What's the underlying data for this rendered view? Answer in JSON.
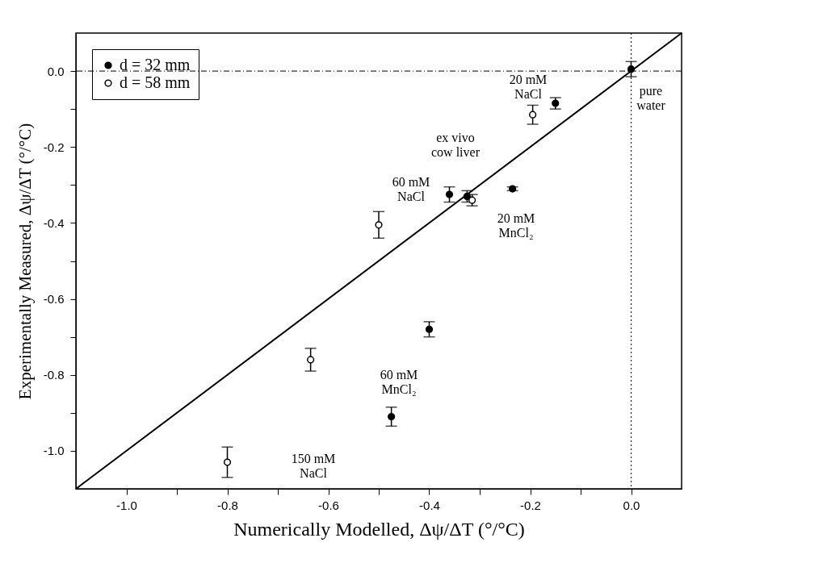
{
  "chart_data": {
    "type": "scatter",
    "xlabel": "Numerically Modelled, Δψ/ΔT  (°/°C)",
    "ylabel": "Experimentally Measured, Δψ/ΔT  (°/°C)",
    "xlim": [
      -1.1,
      0.1
    ],
    "ylim": [
      -1.1,
      0.1
    ],
    "xticks": [
      {
        "value": -1.0,
        "label": "-1.0"
      },
      {
        "value": -0.9,
        "label": null
      },
      {
        "value": -0.8,
        "label": "-0.8"
      },
      {
        "value": -0.7,
        "label": null
      },
      {
        "value": -0.6,
        "label": "-0.6"
      },
      {
        "value": -0.5,
        "label": null
      },
      {
        "value": -0.4,
        "label": "-0.4"
      },
      {
        "value": -0.3,
        "label": null
      },
      {
        "value": -0.2,
        "label": "-0.2"
      },
      {
        "value": -0.1,
        "label": null
      },
      {
        "value": 0,
        "label": "0.0"
      }
    ],
    "yticks": [
      {
        "value": -1.0,
        "label": "-1.0"
      },
      {
        "value": -0.9,
        "label": null
      },
      {
        "value": -0.8,
        "label": "-0.8"
      },
      {
        "value": -0.7,
        "label": null
      },
      {
        "value": -0.6,
        "label": "-0.6"
      },
      {
        "value": -0.5,
        "label": null
      },
      {
        "value": -0.4,
        "label": "-0.4"
      },
      {
        "value": -0.3,
        "label": null
      },
      {
        "value": -0.2,
        "label": "-0.2"
      },
      {
        "value": -0.1,
        "label": null
      },
      {
        "value": 0,
        "label": "0.0"
      }
    ],
    "grid": false,
    "legend": "top left",
    "marker": "circle",
    "series": [
      {
        "name": "d = 32 mm",
        "color": "#000000",
        "x": [
          0.0,
          -0.15,
          -0.235,
          -0.325,
          -0.36,
          -0.4,
          -0.475
        ],
        "values": [
          0.005,
          -0.085,
          -0.31,
          -0.33,
          -0.325,
          -0.68,
          -0.91
        ],
        "errors": [
          0.02,
          0.015,
          0.005,
          0.015,
          0.02,
          0.02,
          0.025
        ]
      },
      {
        "name": "d = 58 mm",
        "color": "#000000",
        "x": [
          -0.195,
          -0.315,
          -0.5,
          -0.635,
          -0.8
        ],
        "values": [
          -0.115,
          -0.34,
          -0.405,
          -0.76,
          -1.03
        ],
        "errors": [
          0.025,
          0.015,
          0.035,
          0.03,
          0.04
        ]
      },
      {
        "type": "line",
        "color": "#000000",
        "marker": "none",
        "x": [
          -1.1,
          0.1
        ],
        "values": [
          -1.1,
          0.1
        ]
      }
    ],
    "ref_lines": [
      {
        "axis": "y",
        "value": 0,
        "line_style": "dashed"
      },
      {
        "axis": "x",
        "value": 0,
        "line_style": "dotted"
      }
    ],
    "annotations": [
      "20 mM\nNaCl",
      "pure\nwater",
      "ex vivo\ncow liver",
      "60 mM\nNaCl",
      "20 mM\nMnCl₂",
      "60 mM\nMnCl₂",
      "150 mM\nNaCl"
    ]
  }
}
